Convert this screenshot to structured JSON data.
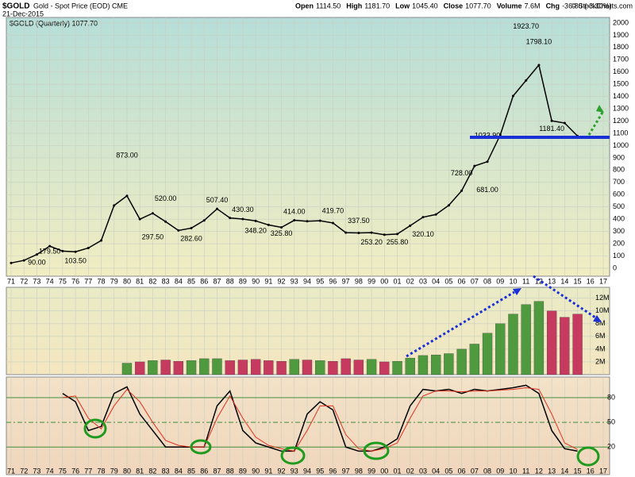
{
  "header": {
    "symbol": "$GOLD",
    "name": "Gold - Spot Price (EOD) CME",
    "date": "21-Dec-2015",
    "quote": [
      {
        "label": "Open",
        "value": "1114.50"
      },
      {
        "label": "High",
        "value": "1181.70"
      },
      {
        "label": "Low",
        "value": "1045.40"
      },
      {
        "label": "Close",
        "value": "1077.70"
      },
      {
        "label": "Volume",
        "value": "7.6M"
      },
      {
        "label": "Chg",
        "value": "-36.80 (-3.30%)"
      }
    ],
    "credit": "© StockCharts.com"
  },
  "chart_data": [
    {
      "type": "line",
      "legend": "$GOLD (Quarterly) 1077.70",
      "color": "#000000",
      "categories": [
        "71",
        "72",
        "73",
        "74",
        "75",
        "76",
        "77",
        "78",
        "79",
        "80",
        "81",
        "82",
        "83",
        "84",
        "85",
        "86",
        "87",
        "88",
        "89",
        "90",
        "91",
        "92",
        "93",
        "94",
        "95",
        "96",
        "97",
        "98",
        "99",
        "00",
        "01",
        "02",
        "03",
        "04",
        "05",
        "06",
        "07",
        "08",
        "09",
        "10",
        "11",
        "12",
        "13",
        "14",
        "15",
        "16",
        "17"
      ],
      "values": [
        43,
        64,
        112,
        180,
        140,
        134,
        165,
        226,
        512,
        590,
        400,
        448,
        380,
        308,
        327,
        390,
        484,
        410,
        401,
        386,
        353,
        333,
        391,
        383,
        387,
        369,
        290,
        288,
        290,
        273,
        279,
        347,
        416,
        438,
        513,
        632,
        834,
        869,
        1087,
        1405,
        1531,
        1657,
        1202,
        1184,
        1078,
        null,
        null
      ],
      "annotations": [
        {
          "value": 873,
          "label": "873.00",
          "x": "80"
        },
        {
          "value": 90,
          "label": "90.00",
          "x": "73"
        },
        {
          "value": 103.5,
          "label": "103.50",
          "x": "76"
        },
        {
          "value": 179.5,
          "label": "179.50",
          "x": "74"
        },
        {
          "value": 297.5,
          "label": "297.50",
          "x": "82"
        },
        {
          "value": 520,
          "label": "520.00",
          "x": "83"
        },
        {
          "value": 282.6,
          "label": "282.60",
          "x": "85"
        },
        {
          "value": 507.4,
          "label": "507.40",
          "x": "87"
        },
        {
          "value": 430.3,
          "label": "430.30",
          "x": "89"
        },
        {
          "value": 348.2,
          "label": "348.20",
          "x": "90"
        },
        {
          "value": 414,
          "label": "414.00",
          "x": "93"
        },
        {
          "value": 325.8,
          "label": "325.80",
          "x": "92"
        },
        {
          "value": 419.7,
          "label": "419.70",
          "x": "96"
        },
        {
          "value": 337.5,
          "label": "337.50",
          "x": "98"
        },
        {
          "value": 253.2,
          "label": "253.20",
          "x": "99"
        },
        {
          "value": 255.8,
          "label": "255.80",
          "x": "01"
        },
        {
          "value": 320.1,
          "label": "320.10",
          "x": "03"
        },
        {
          "value": 728,
          "label": "728.00",
          "x": "06"
        },
        {
          "value": 1033.9,
          "label": "1033.90",
          "x": "08"
        },
        {
          "value": 681,
          "label": "681.00",
          "x": "08"
        },
        {
          "value": 1923.7,
          "label": "1923.70",
          "x": "11"
        },
        {
          "value": 1798.1,
          "label": "1798.10",
          "x": "12"
        },
        {
          "value": 1181.4,
          "label": "1181.40",
          "x": "13"
        }
      ],
      "ylim": [
        -65,
        2045
      ],
      "yticks": [
        0,
        100,
        200,
        300,
        400,
        500,
        600,
        700,
        800,
        900,
        1000,
        1100,
        1200,
        1300,
        1400,
        1500,
        1600,
        1700,
        1800,
        1900,
        2000
      ],
      "grid": true
    },
    {
      "type": "bar",
      "up_color": "#4f9a3f",
      "down_color": "#c53a5e",
      "values": [
        null,
        null,
        null,
        null,
        null,
        null,
        null,
        null,
        null,
        1800000,
        2000000,
        2200000,
        2300000,
        2100000,
        2200000,
        2500000,
        2500000,
        2200000,
        2300000,
        2400000,
        2200000,
        2100000,
        2400000,
        2300000,
        2200000,
        2100000,
        2500000,
        2300000,
        2400000,
        2000000,
        2100000,
        2600000,
        3000000,
        3100000,
        3300000,
        4000000,
        4800000,
        6500000,
        8000000,
        9500000,
        11000000,
        11500000,
        10000000,
        9000000,
        9500000,
        null,
        null
      ],
      "ylim": [
        0,
        13700000
      ],
      "yticks": [
        {
          "value": 2000000,
          "label": "2M"
        },
        {
          "value": 4000000,
          "label": "4M"
        },
        {
          "value": 6000000,
          "label": "6M"
        },
        {
          "value": 8000000,
          "label": "8M"
        },
        {
          "value": 10000000,
          "label": "10M"
        },
        {
          "value": 12000000,
          "label": "12M"
        }
      ],
      "grid": true
    },
    {
      "type": "line",
      "grid_color": "#3f8f3f",
      "series": [
        {
          "color": "#000000",
          "values": [
            null,
            null,
            null,
            null,
            85,
            75,
            40,
            45,
            85,
            93,
            60,
            40,
            20,
            20,
            20,
            20,
            70,
            88,
            40,
            25,
            20,
            15,
            15,
            60,
            75,
            65,
            20,
            15,
            15,
            20,
            30,
            70,
            90,
            88,
            90,
            85,
            90,
            88,
            90,
            92,
            95,
            85,
            40,
            18,
            15,
            null,
            null
          ]
        },
        {
          "color": "#e0301e",
          "values": [
            null,
            null,
            null,
            null,
            80,
            82,
            55,
            42,
            70,
            90,
            75,
            50,
            28,
            22,
            20,
            20,
            55,
            82,
            55,
            32,
            22,
            18,
            15,
            40,
            70,
            70,
            35,
            18,
            15,
            18,
            25,
            55,
            82,
            88,
            88,
            87,
            88,
            88,
            89,
            90,
            92,
            90,
            60,
            25,
            17,
            null,
            null
          ]
        }
      ],
      "ylim": [
        -13.5,
        105
      ],
      "yticks": [
        20,
        50,
        80
      ]
    }
  ]
}
